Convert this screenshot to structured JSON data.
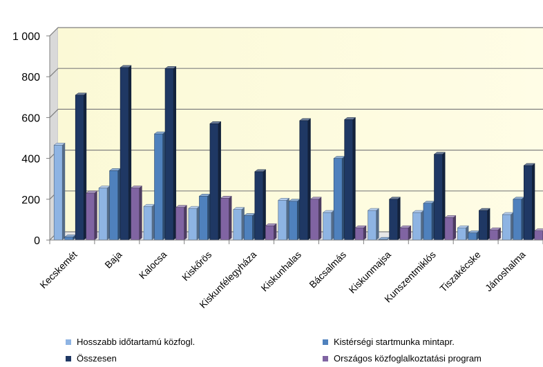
{
  "chart_data": {
    "type": "bar",
    "title": "",
    "xlabel": "",
    "ylabel": "",
    "ylim": [
      0,
      1000
    ],
    "yticks": [
      0,
      200,
      400,
      600,
      800,
      1000
    ],
    "ytick_labels": [
      "0",
      "200",
      "400",
      "600",
      "800",
      "1 000"
    ],
    "grid": true,
    "legend_position": "bottom",
    "categories": [
      "Kecskemét",
      "Baja",
      "Kalocsa",
      "Kiskőrös",
      "Kiskunfélegyháza",
      "Kiskunhalas",
      "Bácsalmás",
      "Kiskunmajsa",
      "Kunszentmiklós",
      "Tiszakécske",
      "Jánoshalma"
    ],
    "series": [
      {
        "name": "Hosszabb időtartamú közfogl.",
        "color": "#8eb4e3",
        "values": [
          465,
          255,
          165,
          155,
          150,
          195,
          135,
          145,
          135,
          60,
          125
        ]
      },
      {
        "name": "Kistérségi startmunka mintapr.",
        "color": "#4f81bd",
        "values": [
          15,
          340,
          520,
          215,
          120,
          190,
          400,
          3,
          180,
          35,
          200
        ]
      },
      {
        "name": "Összesen",
        "color": "#1f3864",
        "values": [
          710,
          845,
          840,
          570,
          335,
          585,
          590,
          200,
          420,
          145,
          365
        ]
      },
      {
        "name": "Országos közfoglalkoztatási program",
        "color": "#8064a2",
        "values": [
          230,
          255,
          160,
          205,
          70,
          200,
          60,
          60,
          110,
          50,
          45
        ]
      }
    ]
  }
}
